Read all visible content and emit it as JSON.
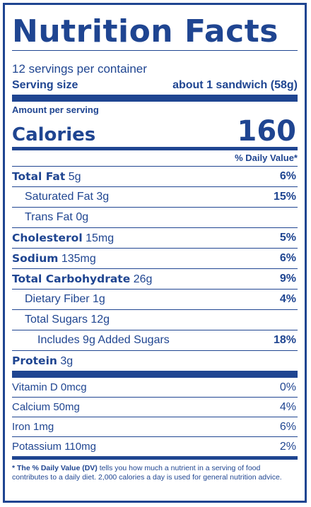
{
  "label": {
    "title": "Nutrition Facts",
    "servings_per_container": "12 servings per container",
    "serving_size_label": "Serving size",
    "serving_size_value": "about 1 sandwich (58g)",
    "amount_per_serving": "Amount per serving",
    "calories_label": "Calories",
    "calories_value": "160",
    "daily_value_header": "% Daily Value*",
    "nutrients": [
      {
        "name": "Total Fat",
        "amount": "5g",
        "dv": "6%"
      },
      {
        "name": "Saturated Fat 3g",
        "amount": "",
        "dv": "15%"
      },
      {
        "name": "Trans Fat 0g",
        "amount": "",
        "dv": ""
      },
      {
        "name": "Cholesterol",
        "amount": "15mg",
        "dv": "5%"
      },
      {
        "name": "Sodium",
        "amount": "135mg",
        "dv": "6%"
      },
      {
        "name": "Total Carbohydrate",
        "amount": "26g",
        "dv": "9%"
      },
      {
        "name": "Dietary Fiber 1g",
        "amount": "",
        "dv": "4%"
      },
      {
        "name": "Total Sugars 12g",
        "amount": "",
        "dv": ""
      },
      {
        "name": "Includes 9g Added Sugars",
        "amount": "",
        "dv": "18%"
      },
      {
        "name": "Protein",
        "amount": "3g",
        "dv": ""
      }
    ],
    "vitamins": [
      {
        "name": "Vitamin D 0mcg",
        "dv": "0%"
      },
      {
        "name": "Calcium 50mg",
        "dv": "4%"
      },
      {
        "name": "Iron 1mg",
        "dv": "6%"
      },
      {
        "name": "Potassium 110mg",
        "dv": "2%"
      }
    ],
    "footnote_lead": "* The % Daily Value (DV)",
    "footnote_body": " tells you how much a nutrient in a serving of food contributes to a daily diet. 2,000 calories a day is used for general nutrition advice.",
    "color": "#1f4591"
  }
}
